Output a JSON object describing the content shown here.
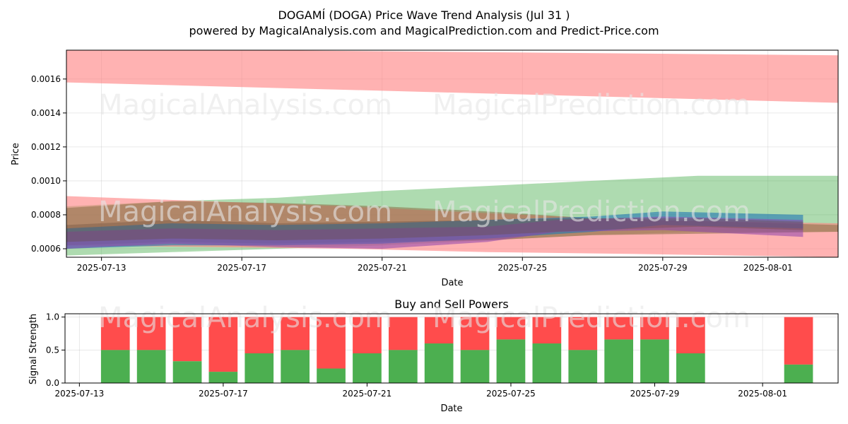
{
  "title": "DOGAMÍ (DOGA) Price Wave Trend Analysis (Jul 31 )",
  "subtitle": "powered by MagicalAnalysis.com and MagicalPrediction.com and Predict-Price.com",
  "watermarks": [
    "MagicalAnalysis.com",
    "MagicalPrediction.com"
  ],
  "chart_data": [
    {
      "type": "area",
      "xlabel": "Date",
      "ylabel": "Price",
      "x_tick_labels": [
        "2025-07-13",
        "2025-07-17",
        "2025-07-21",
        "2025-07-25",
        "2025-07-29",
        "2025-08-01"
      ],
      "x_tick_dates": [
        "2025-07-13",
        "2025-07-17",
        "2025-07-21",
        "2025-07-25",
        "2025-07-29",
        "2025-08-01"
      ],
      "y_tick_labels": [
        "0.0006",
        "0.0008",
        "0.0010",
        "0.0012",
        "0.0014",
        "0.0016"
      ],
      "xlim": [
        "2025-07-12",
        "2025-08-03"
      ],
      "ylim": [
        0.00055,
        0.00177
      ],
      "grid": true,
      "bands": [
        {
          "color": "#ff7f7f",
          "opacity": 0.6,
          "x": [
            "2025-07-12",
            "2025-08-03"
          ],
          "upper": [
            0.00178,
            0.00174
          ],
          "lower": [
            0.00158,
            0.00146
          ]
        },
        {
          "color": "#4caf50",
          "opacity": 0.45,
          "x": [
            "2025-07-12",
            "2025-07-15",
            "2025-07-18",
            "2025-07-21",
            "2025-07-24",
            "2025-07-27",
            "2025-07-30",
            "2025-08-03"
          ],
          "upper": [
            0.00085,
            0.00088,
            0.0009,
            0.00094,
            0.00097,
            0.001,
            0.00103,
            0.00103
          ],
          "lower": [
            0.00056,
            0.00058,
            0.0006,
            0.00062,
            0.00065,
            0.00068,
            0.0007,
            0.0007
          ]
        },
        {
          "color": "#ff7f7f",
          "opacity": 0.6,
          "x": [
            "2025-07-12",
            "2025-07-16",
            "2025-07-20",
            "2025-07-24",
            "2025-07-28",
            "2025-08-03"
          ],
          "upper": [
            0.00091,
            0.00088,
            0.00085,
            0.00081,
            0.00077,
            0.00075
          ],
          "lower": [
            0.00062,
            0.00061,
            0.0006,
            0.00058,
            0.00057,
            0.00055
          ]
        },
        {
          "color": "#8b6f47",
          "opacity": 0.55,
          "x": [
            "2025-07-12",
            "2025-07-15",
            "2025-07-18",
            "2025-07-21",
            "2025-07-24",
            "2025-07-27",
            "2025-08-03"
          ],
          "upper": [
            0.00084,
            0.00088,
            0.00087,
            0.00085,
            0.00082,
            0.00078,
            0.00074
          ],
          "lower": [
            0.00062,
            0.00064,
            0.00063,
            0.00064,
            0.00065,
            0.00068,
            0.0007
          ]
        },
        {
          "color": "#1f77b4",
          "opacity": 0.6,
          "x": [
            "2025-07-12",
            "2025-07-15",
            "2025-07-18",
            "2025-07-21",
            "2025-07-24",
            "2025-07-27",
            "2025-07-29",
            "2025-08-02"
          ],
          "upper": [
            0.00072,
            0.00075,
            0.00074,
            0.00075,
            0.00077,
            0.00079,
            0.00082,
            0.0008
          ],
          "lower": [
            0.0006,
            0.00062,
            0.00062,
            0.00063,
            0.00066,
            0.0007,
            0.00074,
            0.00072
          ]
        },
        {
          "color": "#8e44ad",
          "opacity": 0.55,
          "x": [
            "2025-07-12",
            "2025-07-15",
            "2025-07-18",
            "2025-07-21",
            "2025-07-24",
            "2025-07-26",
            "2025-07-29",
            "2025-08-02"
          ],
          "upper": [
            0.0007,
            0.00072,
            0.00071,
            0.00072,
            0.00073,
            0.00077,
            0.00079,
            0.00077
          ],
          "lower": [
            0.0006,
            0.00063,
            0.00061,
            0.0006,
            0.00064,
            0.0007,
            0.00071,
            0.00067
          ]
        },
        {
          "color": "#6b4b3a",
          "opacity": 0.35,
          "x": [
            "2025-07-12",
            "2025-07-15",
            "2025-07-18",
            "2025-07-21",
            "2025-07-24",
            "2025-07-27",
            "2025-07-30",
            "2025-08-02"
          ],
          "upper": [
            0.00074,
            0.00077,
            0.00075,
            0.00076,
            0.00077,
            0.00078,
            0.00078,
            0.00076
          ],
          "lower": [
            0.00064,
            0.00066,
            0.00065,
            0.00066,
            0.00068,
            0.00071,
            0.00073,
            0.00071
          ]
        }
      ]
    },
    {
      "type": "bar",
      "title": "Buy and Sell Powers",
      "xlabel": "Date",
      "ylabel": "Signal Strength",
      "x_tick_labels": [
        "2025-07-13",
        "2025-07-17",
        "2025-07-21",
        "2025-07-25",
        "2025-07-29",
        "2025-08-01"
      ],
      "x_tick_dates": [
        "2025-07-13",
        "2025-07-17",
        "2025-07-21",
        "2025-07-25",
        "2025-07-29",
        "2025-08-01"
      ],
      "y_tick_labels": [
        "0.0",
        "0.5",
        "1.0"
      ],
      "xlim": [
        "2025-07-12.6",
        "2025-08-03.1"
      ],
      "ylim": [
        0,
        1.05
      ],
      "buy_color": "#4caf50",
      "sell_color": "#ff4c4c",
      "dates": [
        "2025-07-14",
        "2025-07-15",
        "2025-07-16",
        "2025-07-17",
        "2025-07-18",
        "2025-07-19",
        "2025-07-20",
        "2025-07-21",
        "2025-07-22",
        "2025-07-23",
        "2025-07-24",
        "2025-07-25",
        "2025-07-26",
        "2025-07-27",
        "2025-07-28",
        "2025-07-29",
        "2025-07-30",
        "2025-08-02"
      ],
      "buy": [
        0.5,
        0.5,
        0.33,
        0.17,
        0.45,
        0.5,
        0.22,
        0.45,
        0.5,
        0.6,
        0.5,
        0.66,
        0.6,
        0.5,
        0.66,
        0.66,
        0.45,
        0.28
      ],
      "total": 1.0
    }
  ]
}
